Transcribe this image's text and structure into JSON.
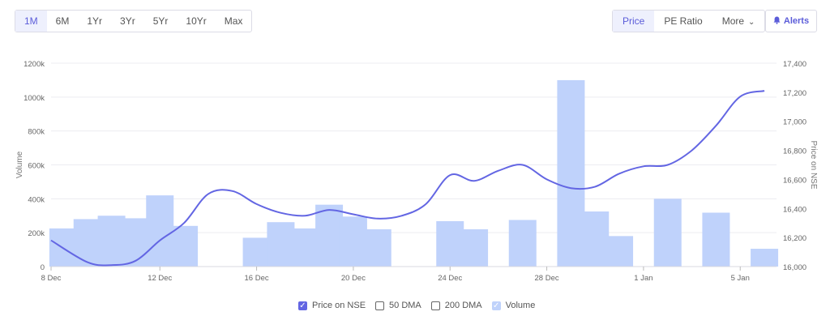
{
  "toolbar": {
    "ranges": [
      "1M",
      "6M",
      "1Yr",
      "3Yr",
      "5Yr",
      "10Yr",
      "Max"
    ],
    "active_range": "1M",
    "metrics": [
      "Price",
      "PE Ratio",
      "More"
    ],
    "active_metric": "Price",
    "alerts_label": "Alerts"
  },
  "legend": {
    "price": "Price on NSE",
    "dma50": "50 DMA",
    "dma200": "200 DMA",
    "volume": "Volume"
  },
  "colors": {
    "accent": "#6366e3",
    "volume_bar": "#bfd2fb",
    "grid": "#ececf1"
  },
  "chart_data": {
    "type": "bar+line",
    "x_ticks": [
      "8 Dec",
      "12 Dec",
      "16 Dec",
      "20 Dec",
      "24 Dec",
      "28 Dec",
      "1 Jan",
      "5 Jan"
    ],
    "left_axis": {
      "label": "Volume",
      "ylim": [
        0,
        1200000
      ],
      "ticks": [
        "0",
        "200k",
        "400k",
        "600k",
        "800k",
        "1000k",
        "1200k"
      ]
    },
    "right_axis": {
      "label": "Price on NSE",
      "ylim": [
        16000,
        17400
      ],
      "ticks": [
        "16,000",
        "16,200",
        "16,400",
        "16,600",
        "16,800",
        "17,000",
        "17,200",
        "17,400"
      ]
    },
    "dates": [
      "8 Dec",
      "9 Dec",
      "10 Dec",
      "11 Dec",
      "12 Dec",
      "13 Dec",
      "14 Dec",
      "15 Dec",
      "16 Dec",
      "17 Dec",
      "18 Dec",
      "19 Dec",
      "20 Dec",
      "21 Dec",
      "22 Dec",
      "23 Dec",
      "24 Dec",
      "25 Dec",
      "26 Dec",
      "27 Dec",
      "28 Dec",
      "29 Dec",
      "30 Dec",
      "31 Dec",
      "1 Jan",
      "2 Jan",
      "3 Jan",
      "4 Jan",
      "5 Jan",
      "6 Jan"
    ],
    "volume": [
      {
        "date": "8 Dec",
        "value": 225000
      },
      {
        "date": "9 Dec",
        "value": 280000
      },
      {
        "date": "10 Dec",
        "value": 300000
      },
      {
        "date": "11 Dec",
        "value": 285000
      },
      {
        "date": "12 Dec",
        "value": 420000
      },
      {
        "date": "13 Dec",
        "value": 240000
      },
      {
        "date": "16 Dec",
        "value": 170000
      },
      {
        "date": "17 Dec",
        "value": 262000
      },
      {
        "date": "18 Dec",
        "value": 225000
      },
      {
        "date": "19 Dec",
        "value": 365000
      },
      {
        "date": "20 Dec",
        "value": 295000
      },
      {
        "date": "21 Dec",
        "value": 220000
      },
      {
        "date": "24 Dec",
        "value": 268000
      },
      {
        "date": "25 Dec",
        "value": 220000
      },
      {
        "date": "27 Dec",
        "value": 275000
      },
      {
        "date": "29 Dec",
        "value": 1100000
      },
      {
        "date": "30 Dec",
        "value": 325000
      },
      {
        "date": "31 Dec",
        "value": 180000
      },
      {
        "date": "2 Jan",
        "value": 400000
      },
      {
        "date": "4 Jan",
        "value": 318000
      },
      {
        "date": "6 Jan",
        "value": 105000
      }
    ],
    "price": [
      {
        "date": "8 Dec",
        "value": 16180
      },
      {
        "date": "9 Dec",
        "value": 16030
      },
      {
        "date": "10 Dec",
        "value": 16010
      },
      {
        "date": "11 Dec",
        "value": 16040
      },
      {
        "date": "12 Dec",
        "value": 16180
      },
      {
        "date": "13 Dec",
        "value": 16300
      },
      {
        "date": "14 Dec",
        "value": 16500
      },
      {
        "date": "15 Dec",
        "value": 16520
      },
      {
        "date": "16 Dec",
        "value": 16430
      },
      {
        "date": "17 Dec",
        "value": 16370
      },
      {
        "date": "18 Dec",
        "value": 16350
      },
      {
        "date": "19 Dec",
        "value": 16390
      },
      {
        "date": "20 Dec",
        "value": 16360
      },
      {
        "date": "21 Dec",
        "value": 16330
      },
      {
        "date": "22 Dec",
        "value": 16350
      },
      {
        "date": "23 Dec",
        "value": 16430
      },
      {
        "date": "24 Dec",
        "value": 16630
      },
      {
        "date": "25 Dec",
        "value": 16590
      },
      {
        "date": "26 Dec",
        "value": 16660
      },
      {
        "date": "27 Dec",
        "value": 16700
      },
      {
        "date": "28 Dec",
        "value": 16600
      },
      {
        "date": "29 Dec",
        "value": 16540
      },
      {
        "date": "30 Dec",
        "value": 16550
      },
      {
        "date": "31 Dec",
        "value": 16640
      },
      {
        "date": "1 Jan",
        "value": 16690
      },
      {
        "date": "2 Jan",
        "value": 16700
      },
      {
        "date": "3 Jan",
        "value": 16800
      },
      {
        "date": "4 Jan",
        "value": 16970
      },
      {
        "date": "5 Jan",
        "value": 17170
      },
      {
        "date": "6 Jan",
        "value": 17210
      }
    ]
  }
}
